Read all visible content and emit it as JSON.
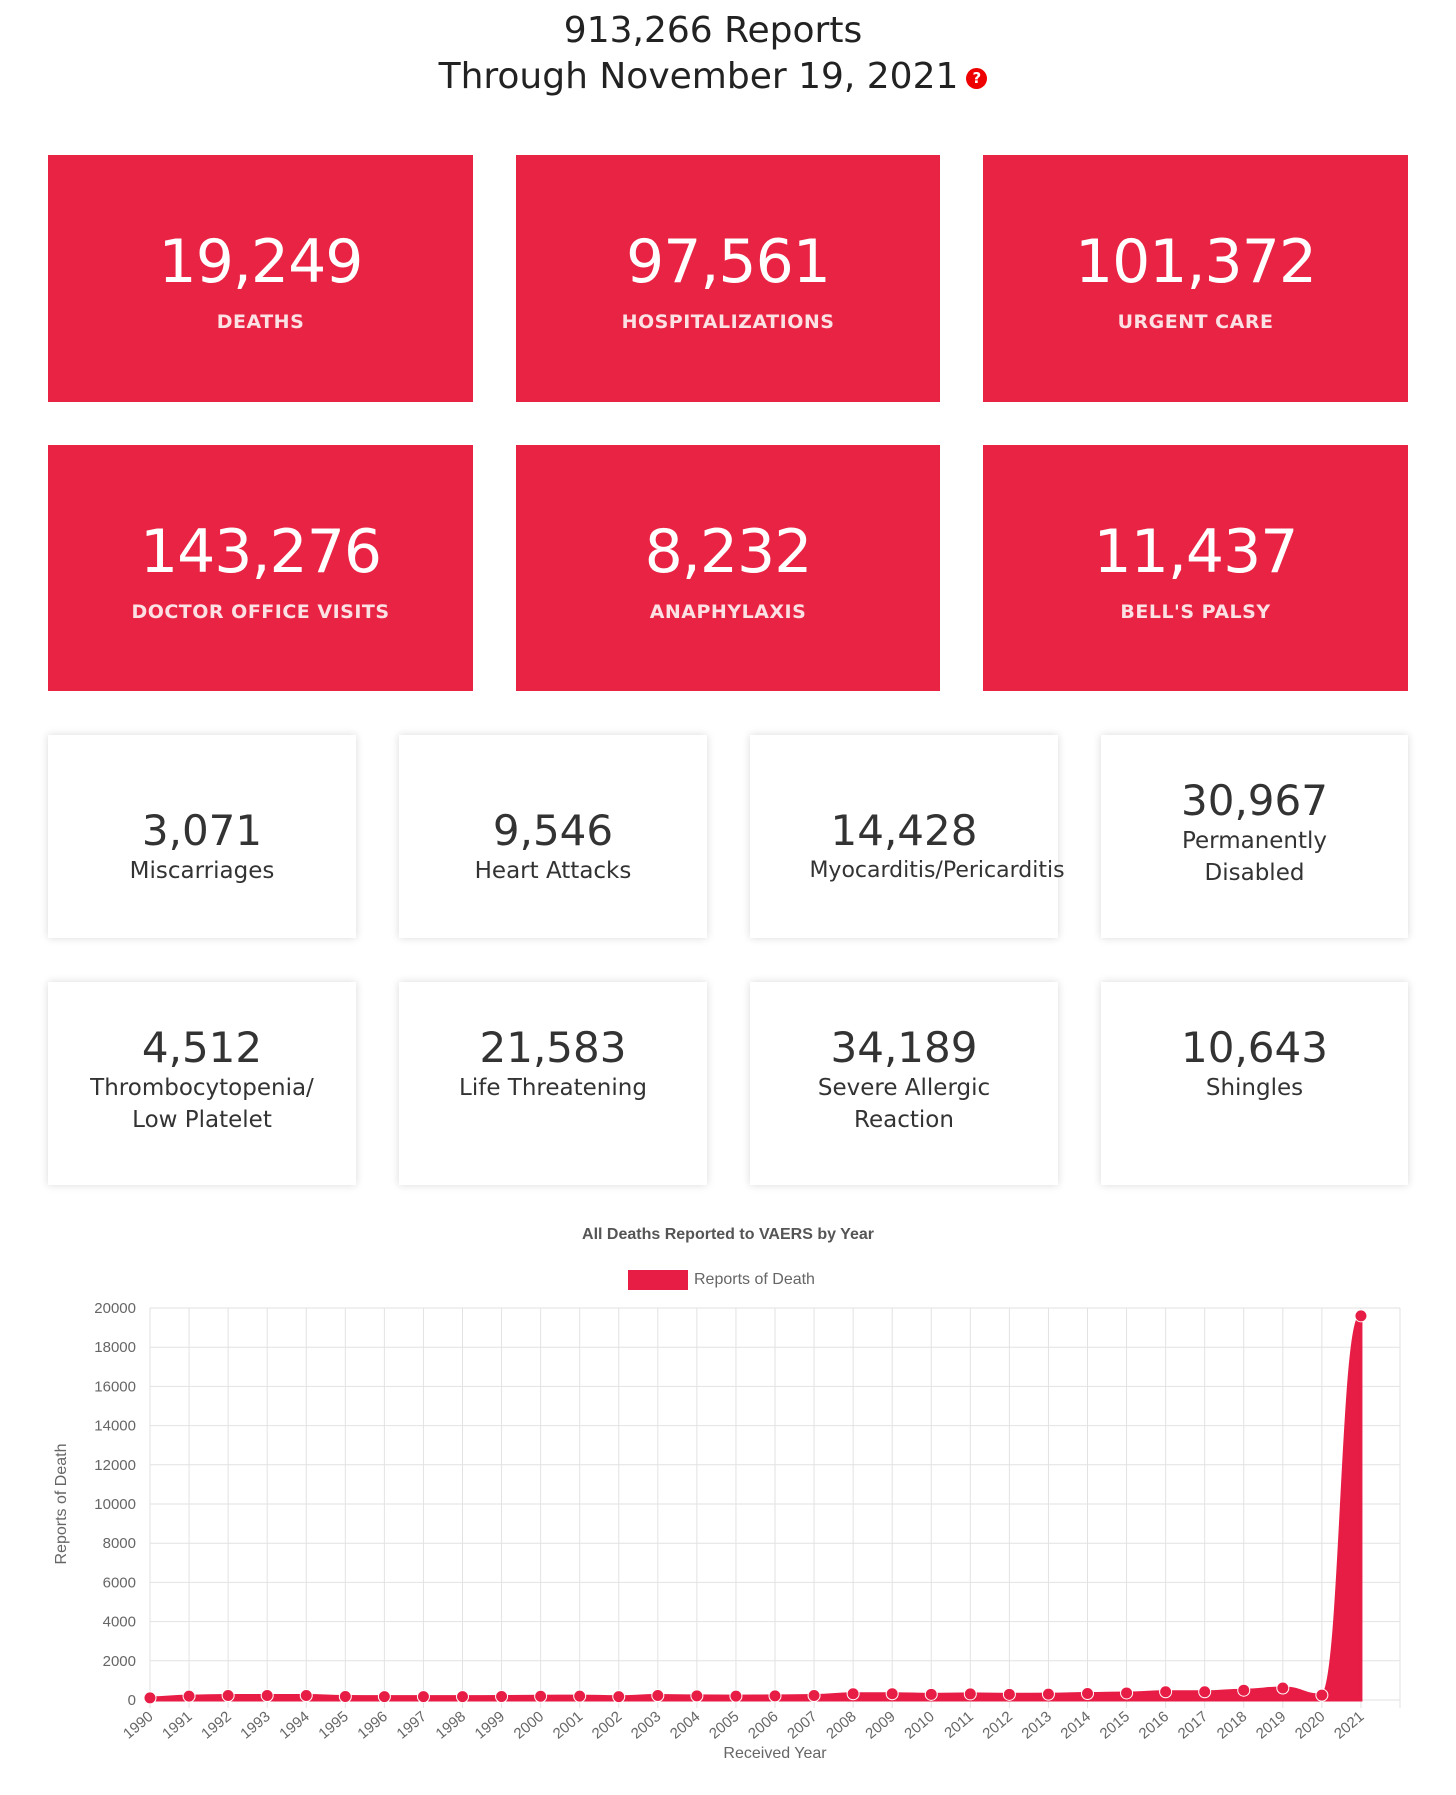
{
  "header": {
    "line1": "913,266 Reports",
    "line2": "Through November 19, 2021",
    "help_icon": "question-mark-icon",
    "help_glyph": "?"
  },
  "colors": {
    "accent": "#e92343",
    "chart_fill": "#e71d45"
  },
  "red_stats": [
    {
      "value": "19,249",
      "label": "DEATHS"
    },
    {
      "value": "97,561",
      "label": "HOSPITALIZATIONS"
    },
    {
      "value": "101,372",
      "label": "URGENT CARE"
    },
    {
      "value": "143,276",
      "label": "DOCTOR OFFICE VISITS"
    },
    {
      "value": "8,232",
      "label": "ANAPHYLAXIS"
    },
    {
      "value": "11,437",
      "label": "BELL'S PALSY"
    }
  ],
  "white_stats": [
    {
      "value": "3,071",
      "label_lines": [
        "Miscarriages"
      ]
    },
    {
      "value": "9,546",
      "label_lines": [
        "Heart Attacks"
      ]
    },
    {
      "value": "14,428",
      "label_lines": [
        "Myocarditis/Pericarditis"
      ]
    },
    {
      "value": "30,967",
      "label_lines": [
        "Permanently",
        "Disabled"
      ]
    },
    {
      "value": "4,512",
      "label_lines": [
        "Thrombocytopenia/",
        "Low Platelet"
      ]
    },
    {
      "value": "21,583",
      "label_lines": [
        "Life Threatening"
      ]
    },
    {
      "value": "34,189",
      "label_lines": [
        "Severe Allergic",
        "Reaction"
      ]
    },
    {
      "value": "10,643",
      "label_lines": [
        "Shingles"
      ]
    }
  ],
  "chart_data": {
    "type": "area",
    "title": "All Deaths Reported to VAERS by Year",
    "xlabel": "Received Year",
    "ylabel": "Reports of Death",
    "ylim": [
      0,
      20000
    ],
    "yticks": [
      0,
      2000,
      4000,
      6000,
      8000,
      10000,
      12000,
      14000,
      16000,
      18000,
      20000
    ],
    "grid": true,
    "legend_position": "top-center",
    "categories": [
      "1990",
      "1991",
      "1992",
      "1993",
      "1994",
      "1995",
      "1996",
      "1997",
      "1998",
      "1999",
      "2000",
      "2001",
      "2002",
      "2003",
      "2004",
      "2005",
      "2006",
      "2007",
      "2008",
      "2009",
      "2010",
      "2011",
      "2012",
      "2013",
      "2014",
      "2015",
      "2016",
      "2017",
      "2018",
      "2019",
      "2020",
      "2021"
    ],
    "series": [
      {
        "name": "Reports of Death",
        "values": [
          110,
          200,
          230,
          230,
          230,
          180,
          170,
          170,
          170,
          180,
          190,
          200,
          170,
          230,
          210,
          200,
          210,
          230,
          320,
          320,
          290,
          310,
          290,
          300,
          330,
          360,
          420,
          420,
          500,
          610,
          250,
          19600
        ]
      }
    ]
  }
}
